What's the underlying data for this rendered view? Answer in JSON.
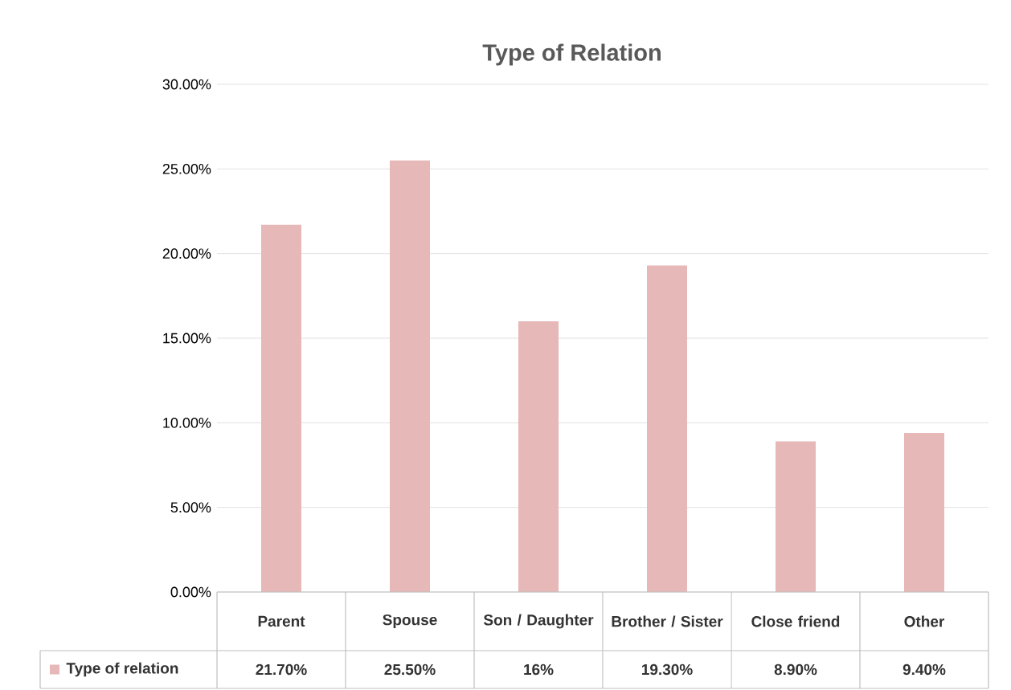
{
  "chart_data": {
    "type": "bar",
    "title": "Type of Relation",
    "categories": [
      "Parent",
      "Spouse",
      "Son / Daughter",
      "Brother / Sister",
      "Close friend",
      "Other"
    ],
    "series": [
      {
        "name": "Type of relation",
        "color": "#e6b8b7",
        "values": [
          21.7,
          25.5,
          16,
          19.3,
          8.9,
          9.4
        ],
        "value_labels": [
          "21.70%",
          "25.50%",
          "16%",
          "19.30%",
          "8.90%",
          "9.40%"
        ]
      }
    ],
    "ylim": [
      0,
      30
    ],
    "yticks": [
      {
        "value": 0,
        "label": "0.00%"
      },
      {
        "value": 5,
        "label": "5.00%"
      },
      {
        "value": 10,
        "label": "10.00%"
      },
      {
        "value": 15,
        "label": "15.00%"
      },
      {
        "value": 20,
        "label": "20.00%"
      },
      {
        "value": 25,
        "label": "25.00%"
      },
      {
        "value": 30,
        "label": "30.00%"
      }
    ],
    "grid": "y",
    "legend": "bottom"
  }
}
